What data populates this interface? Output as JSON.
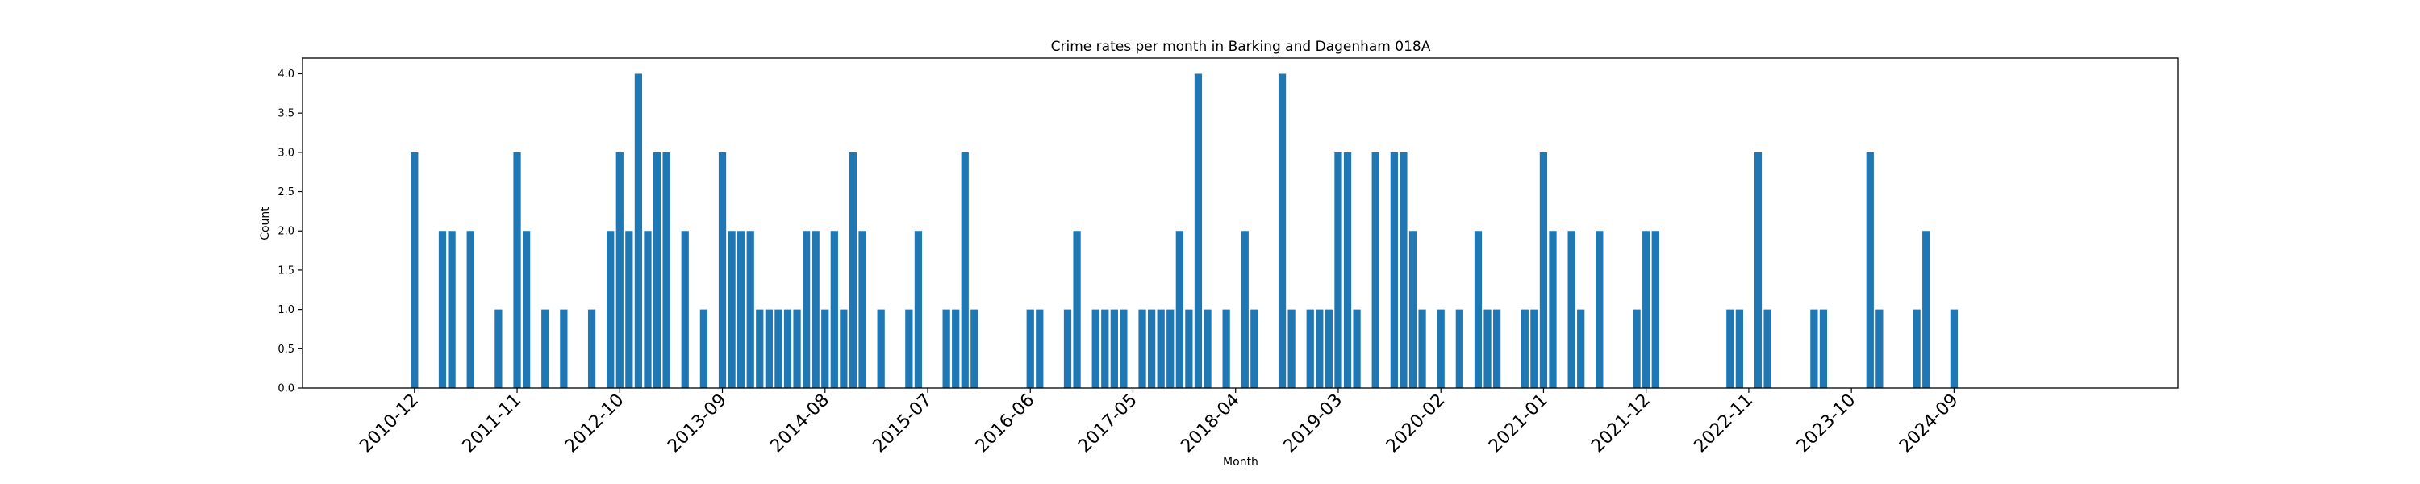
{
  "chart_data": {
    "type": "bar",
    "title": "Crime rates per month in Barking and Dagenham 018A",
    "xlabel": "Month",
    "ylabel": "Count",
    "ylim": [
      0,
      4.2
    ],
    "yticks": [
      "0.0",
      "0.5",
      "1.0",
      "1.5",
      "2.0",
      "2.5",
      "3.0",
      "3.5",
      "4.0"
    ],
    "xtick_labels": [
      "2010-12",
      "2011-11",
      "2012-10",
      "2013-09",
      "2014-08",
      "2015-07",
      "2016-06",
      "2017-05",
      "2018-04",
      "2019-03",
      "2020-02",
      "2021-01",
      "2021-12",
      "2022-11",
      "2023-10",
      "2024-09"
    ],
    "x_range": [
      "2009-12",
      "2026-09"
    ],
    "grid": false,
    "color": "#1f77b4",
    "series": [
      {
        "values": [
          {
            "x": "2010-12",
            "y": 3
          },
          {
            "x": "2011-03",
            "y": 2
          },
          {
            "x": "2011-04",
            "y": 2
          },
          {
            "x": "2011-06",
            "y": 2
          },
          {
            "x": "2011-09",
            "y": 1
          },
          {
            "x": "2011-11",
            "y": 3
          },
          {
            "x": "2011-12",
            "y": 2
          },
          {
            "x": "2012-02",
            "y": 1
          },
          {
            "x": "2012-04",
            "y": 1
          },
          {
            "x": "2012-07",
            "y": 1
          },
          {
            "x": "2012-09",
            "y": 2
          },
          {
            "x": "2012-10",
            "y": 3
          },
          {
            "x": "2012-11",
            "y": 2
          },
          {
            "x": "2012-12",
            "y": 4
          },
          {
            "x": "2013-01",
            "y": 2
          },
          {
            "x": "2013-02",
            "y": 3
          },
          {
            "x": "2013-03",
            "y": 3
          },
          {
            "x": "2013-05",
            "y": 2
          },
          {
            "x": "2013-07",
            "y": 1
          },
          {
            "x": "2013-09",
            "y": 3
          },
          {
            "x": "2013-10",
            "y": 2
          },
          {
            "x": "2013-11",
            "y": 2
          },
          {
            "x": "2013-12",
            "y": 2
          },
          {
            "x": "2014-01",
            "y": 1
          },
          {
            "x": "2014-02",
            "y": 1
          },
          {
            "x": "2014-03",
            "y": 1
          },
          {
            "x": "2014-04",
            "y": 1
          },
          {
            "x": "2014-05",
            "y": 1
          },
          {
            "x": "2014-06",
            "y": 2
          },
          {
            "x": "2014-07",
            "y": 2
          },
          {
            "x": "2014-08",
            "y": 1
          },
          {
            "x": "2014-09",
            "y": 2
          },
          {
            "x": "2014-10",
            "y": 1
          },
          {
            "x": "2014-11",
            "y": 3
          },
          {
            "x": "2014-12",
            "y": 2
          },
          {
            "x": "2015-02",
            "y": 1
          },
          {
            "x": "2015-05",
            "y": 1
          },
          {
            "x": "2015-06",
            "y": 2
          },
          {
            "x": "2015-09",
            "y": 1
          },
          {
            "x": "2015-10",
            "y": 1
          },
          {
            "x": "2015-11",
            "y": 3
          },
          {
            "x": "2015-12",
            "y": 1
          },
          {
            "x": "2016-06",
            "y": 1
          },
          {
            "x": "2016-07",
            "y": 1
          },
          {
            "x": "2016-10",
            "y": 1
          },
          {
            "x": "2016-11",
            "y": 2
          },
          {
            "x": "2017-01",
            "y": 1
          },
          {
            "x": "2017-02",
            "y": 1
          },
          {
            "x": "2017-03",
            "y": 1
          },
          {
            "x": "2017-04",
            "y": 1
          },
          {
            "x": "2017-06",
            "y": 1
          },
          {
            "x": "2017-07",
            "y": 1
          },
          {
            "x": "2017-08",
            "y": 1
          },
          {
            "x": "2017-09",
            "y": 1
          },
          {
            "x": "2017-10",
            "y": 2
          },
          {
            "x": "2017-11",
            "y": 1
          },
          {
            "x": "2017-12",
            "y": 4
          },
          {
            "x": "2018-01",
            "y": 1
          },
          {
            "x": "2018-03",
            "y": 1
          },
          {
            "x": "2018-05",
            "y": 2
          },
          {
            "x": "2018-06",
            "y": 1
          },
          {
            "x": "2018-09",
            "y": 4
          },
          {
            "x": "2018-10",
            "y": 1
          },
          {
            "x": "2018-12",
            "y": 1
          },
          {
            "x": "2019-01",
            "y": 1
          },
          {
            "x": "2019-02",
            "y": 1
          },
          {
            "x": "2019-03",
            "y": 3
          },
          {
            "x": "2019-04",
            "y": 3
          },
          {
            "x": "2019-05",
            "y": 1
          },
          {
            "x": "2019-07",
            "y": 3
          },
          {
            "x": "2019-09",
            "y": 3
          },
          {
            "x": "2019-10",
            "y": 3
          },
          {
            "x": "2019-11",
            "y": 2
          },
          {
            "x": "2019-12",
            "y": 1
          },
          {
            "x": "2020-02",
            "y": 1
          },
          {
            "x": "2020-04",
            "y": 1
          },
          {
            "x": "2020-06",
            "y": 2
          },
          {
            "x": "2020-07",
            "y": 1
          },
          {
            "x": "2020-08",
            "y": 1
          },
          {
            "x": "2020-11",
            "y": 1
          },
          {
            "x": "2020-12",
            "y": 1
          },
          {
            "x": "2021-01",
            "y": 3
          },
          {
            "x": "2021-02",
            "y": 2
          },
          {
            "x": "2021-04",
            "y": 2
          },
          {
            "x": "2021-05",
            "y": 1
          },
          {
            "x": "2021-07",
            "y": 2
          },
          {
            "x": "2021-11",
            "y": 1
          },
          {
            "x": "2021-12",
            "y": 2
          },
          {
            "x": "2022-01",
            "y": 2
          },
          {
            "x": "2022-09",
            "y": 1
          },
          {
            "x": "2022-10",
            "y": 1
          },
          {
            "x": "2022-12",
            "y": 3
          },
          {
            "x": "2023-01",
            "y": 1
          },
          {
            "x": "2023-06",
            "y": 1
          },
          {
            "x": "2023-07",
            "y": 1
          },
          {
            "x": "2023-12",
            "y": 3
          },
          {
            "x": "2024-01",
            "y": 1
          },
          {
            "x": "2024-05",
            "y": 1
          },
          {
            "x": "2024-06",
            "y": 2
          },
          {
            "x": "2024-09",
            "y": 1
          }
        ]
      }
    ]
  }
}
